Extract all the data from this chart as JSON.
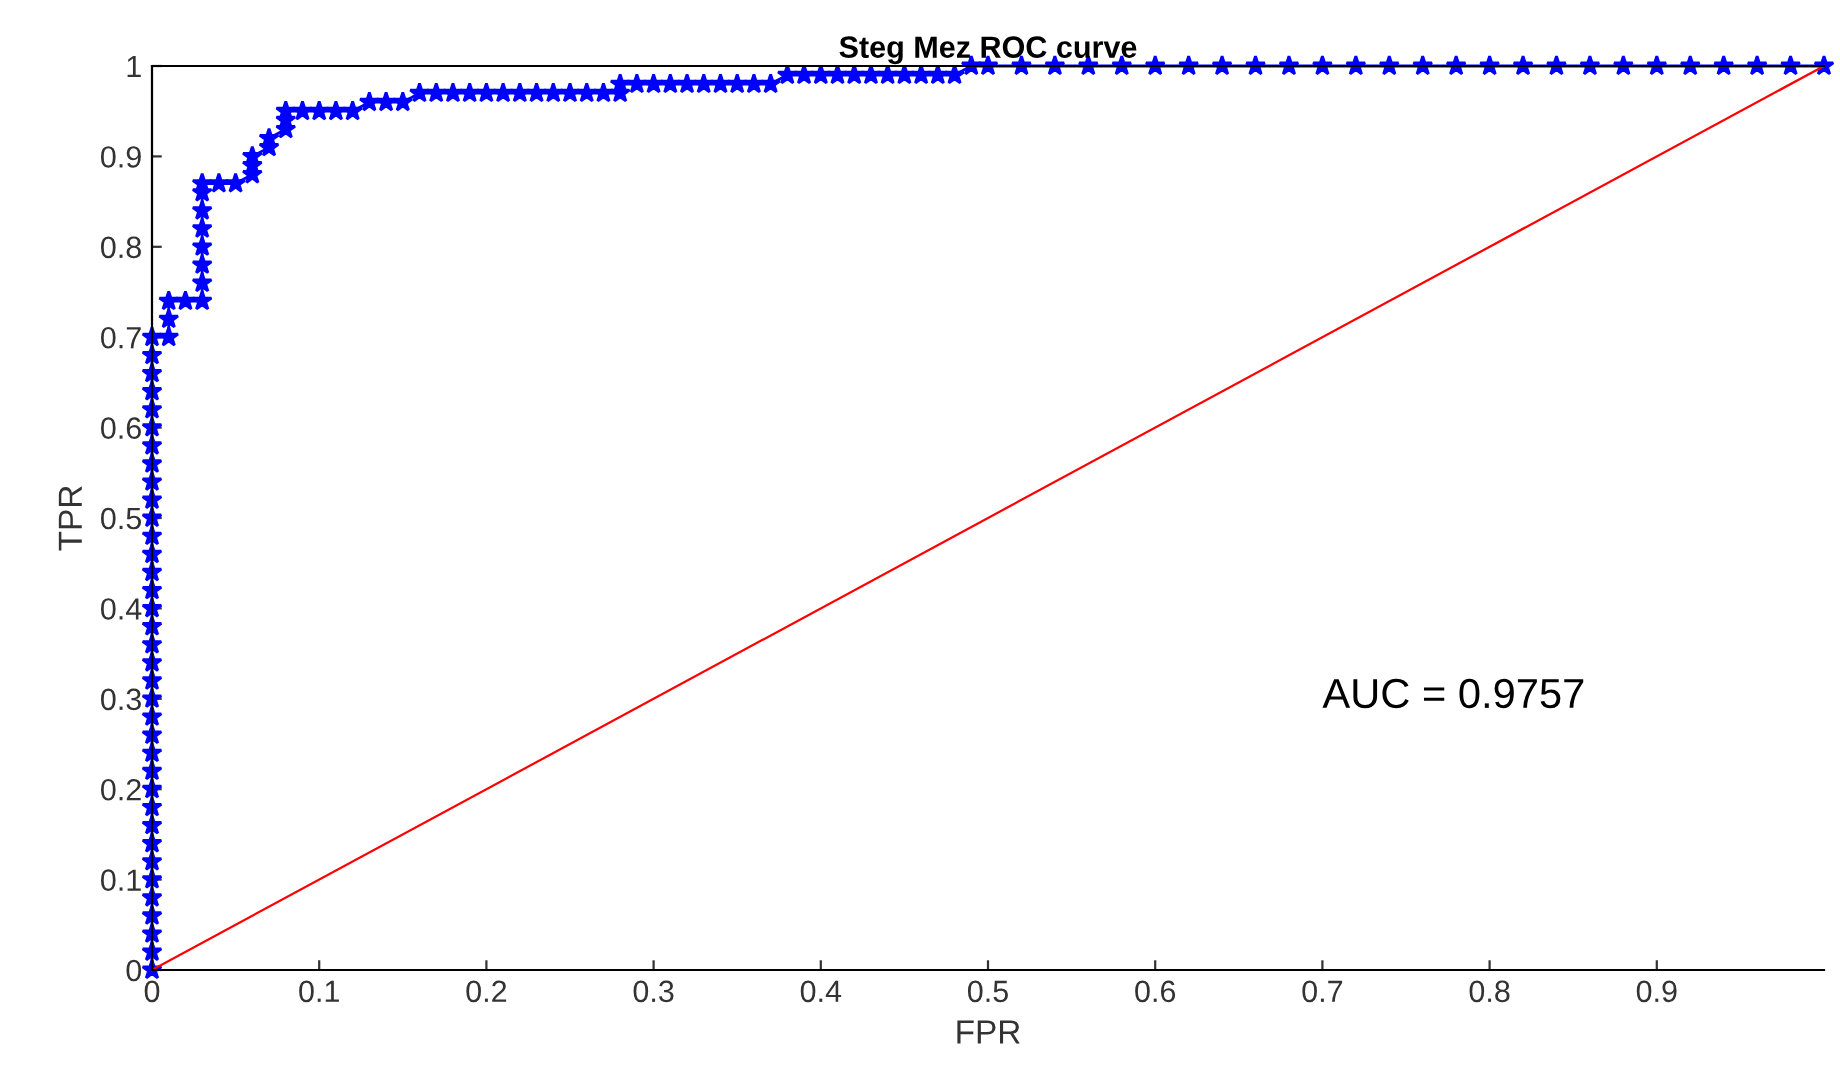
{
  "chart_data": {
    "type": "line",
    "title": "Steg Mez ROC curve",
    "xlabel": "FPR",
    "ylabel": "TPR",
    "xlim": [
      0,
      1
    ],
    "ylim": [
      0,
      1
    ],
    "xticks": [
      0,
      0.1,
      0.2,
      0.3,
      0.4,
      0.5,
      0.6,
      0.7,
      0.8,
      0.9
    ],
    "yticks": [
      0,
      0.1,
      0.2,
      0.3,
      0.4,
      0.5,
      0.6,
      0.7,
      0.8,
      0.9,
      1
    ],
    "grid": false,
    "legend": false,
    "annotations": [
      "AUC = 0.9757"
    ],
    "series": [
      {
        "color": "#0000ff",
        "marker": "star",
        "line_style": "solid",
        "x": [
          0,
          0,
          0,
          0,
          0,
          0,
          0,
          0,
          0,
          0,
          0,
          0,
          0,
          0,
          0,
          0,
          0,
          0,
          0,
          0,
          0,
          0,
          0,
          0,
          0,
          0,
          0,
          0,
          0,
          0,
          0,
          0,
          0,
          0,
          0,
          0,
          0.01,
          0.01,
          0.01,
          0.02,
          0.03,
          0.03,
          0.03,
          0.03,
          0.03,
          0.03,
          0.03,
          0.03,
          0.04,
          0.05,
          0.06,
          0.06,
          0.06,
          0.07,
          0.07,
          0.08,
          0.08,
          0.08,
          0.09,
          0.1,
          0.11,
          0.12,
          0.13,
          0.14,
          0.15,
          0.16,
          0.17,
          0.18,
          0.19,
          0.2,
          0.21,
          0.22,
          0.23,
          0.24,
          0.25,
          0.26,
          0.27,
          0.28,
          0.28,
          0.29,
          0.3,
          0.31,
          0.32,
          0.33,
          0.34,
          0.35,
          0.36,
          0.37,
          0.38,
          0.39,
          0.4,
          0.41,
          0.42,
          0.43,
          0.44,
          0.45,
          0.46,
          0.47,
          0.48,
          0.49,
          0.5,
          0.52,
          0.54,
          0.56,
          0.58,
          0.6,
          0.62,
          0.64,
          0.66,
          0.68,
          0.7,
          0.72,
          0.74,
          0.76,
          0.78,
          0.8,
          0.82,
          0.84,
          0.86,
          0.88,
          0.9,
          0.92,
          0.94,
          0.96,
          0.98,
          1
        ],
        "values": [
          0,
          0.02,
          0.04,
          0.06,
          0.08,
          0.1,
          0.12,
          0.14,
          0.16,
          0.18,
          0.2,
          0.22,
          0.24,
          0.26,
          0.28,
          0.3,
          0.32,
          0.34,
          0.36,
          0.38,
          0.4,
          0.42,
          0.44,
          0.46,
          0.48,
          0.5,
          0.52,
          0.54,
          0.56,
          0.58,
          0.6,
          0.62,
          0.64,
          0.66,
          0.68,
          0.7,
          0.7,
          0.72,
          0.74,
          0.74,
          0.74,
          0.76,
          0.78,
          0.8,
          0.82,
          0.84,
          0.86,
          0.87,
          0.87,
          0.87,
          0.88,
          0.89,
          0.9,
          0.91,
          0.92,
          0.93,
          0.94,
          0.95,
          0.95,
          0.95,
          0.95,
          0.95,
          0.96,
          0.96,
          0.96,
          0.97,
          0.97,
          0.97,
          0.97,
          0.97,
          0.97,
          0.97,
          0.97,
          0.97,
          0.97,
          0.97,
          0.97,
          0.97,
          0.98,
          0.98,
          0.98,
          0.98,
          0.98,
          0.98,
          0.98,
          0.98,
          0.98,
          0.98,
          0.99,
          0.99,
          0.99,
          0.99,
          0.99,
          0.99,
          0.99,
          0.99,
          0.99,
          0.99,
          0.99,
          1,
          1,
          1,
          1,
          1,
          1,
          1,
          1,
          1,
          1,
          1,
          1,
          1,
          1,
          1,
          1,
          1,
          1,
          1,
          1,
          1,
          1,
          1,
          1,
          1,
          1,
          1
        ]
      },
      {
        "color": "#ff0000",
        "marker": "none",
        "line_style": "solid",
        "x": [
          0,
          1
        ],
        "values": [
          0,
          1
        ]
      }
    ]
  }
}
